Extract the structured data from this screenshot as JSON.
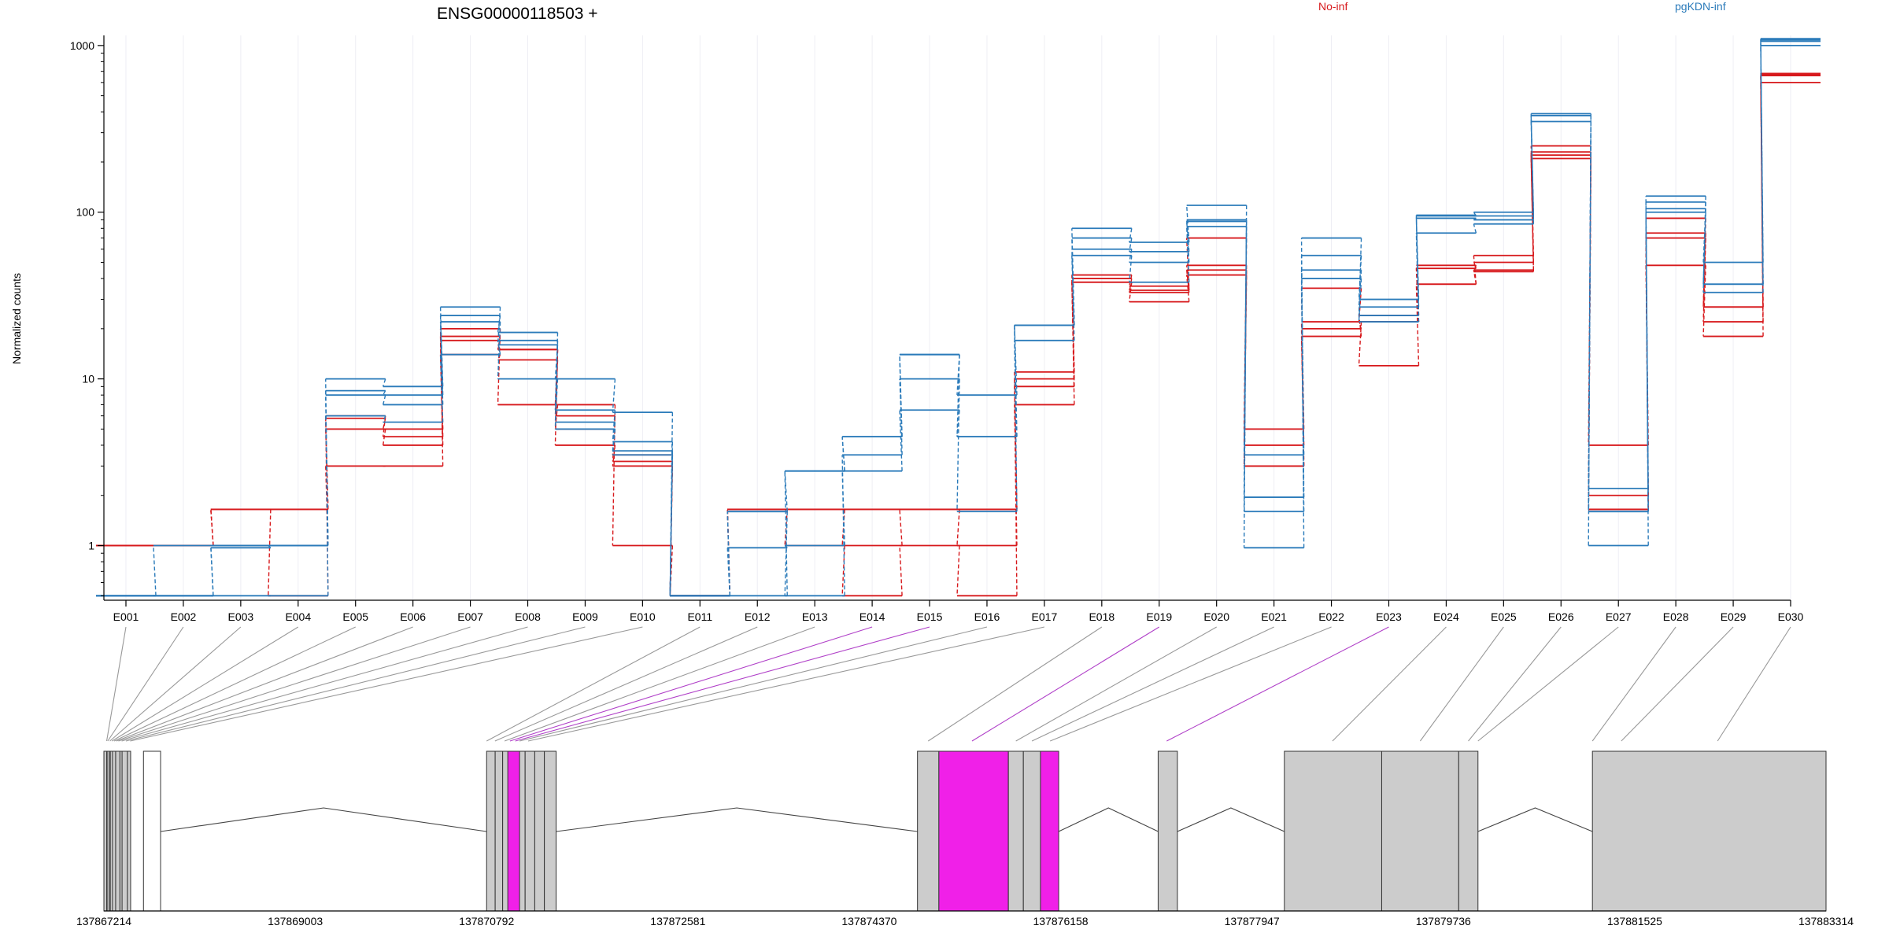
{
  "chart_data": {
    "type": "line",
    "title": "ENSG00000118503 +",
    "ylabel": "Normalized counts",
    "yscale": "log",
    "ylim": [
      0.47,
      1150
    ],
    "yticks": [
      1,
      10,
      100,
      1000
    ],
    "grid": false,
    "legend_placement": "top",
    "categories": [
      "E001",
      "E002",
      "E003",
      "E004",
      "E005",
      "E006",
      "E007",
      "E008",
      "E009",
      "E010",
      "E011",
      "E012",
      "E013",
      "E014",
      "E015",
      "E016",
      "E017",
      "E018",
      "E019",
      "E020",
      "E021",
      "E022",
      "E023",
      "E024",
      "E025",
      "E026",
      "E027",
      "E028",
      "E029",
      "E030"
    ],
    "groups": [
      {
        "name": "No-inf",
        "color": "#d7191c"
      },
      {
        "name": "pgKDN-inf",
        "color": "#2b7bba"
      }
    ],
    "series": [
      {
        "group": "No-inf",
        "values": [
          1,
          1,
          1.65,
          1.65,
          5,
          4,
          14,
          13,
          6,
          3.5,
          0.5,
          1.65,
          1,
          0.5,
          1,
          0.5,
          11,
          40,
          33,
          45,
          3,
          22,
          12,
          37,
          45,
          230,
          2,
          92,
          27,
          660
        ]
      },
      {
        "group": "No-inf",
        "values": [
          1,
          1,
          1.65,
          1.65,
          5.8,
          5,
          17,
          15,
          4,
          3,
          0.5,
          1.65,
          1.65,
          1.65,
          1.65,
          1.65,
          10,
          42,
          36,
          48,
          3,
          20,
          22,
          46,
          50,
          210,
          1.65,
          70,
          22,
          600
        ]
      },
      {
        "group": "No-inf",
        "values": [
          1,
          1,
          1.65,
          0.5,
          6,
          4.5,
          20,
          7,
          5,
          3.2,
          0.5,
          1.65,
          1.65,
          1,
          1.65,
          1,
          7,
          38,
          29,
          42,
          4,
          18,
          24,
          48,
          44,
          220,
          4,
          48,
          18,
          670
        ]
      },
      {
        "group": "No-inf",
        "values": [
          1,
          1,
          1,
          1,
          3,
          3,
          18,
          15,
          7,
          1,
          0.5,
          1.65,
          1.65,
          1.65,
          1.65,
          1.65,
          9,
          38,
          34,
          70,
          5,
          35,
          22,
          37,
          55,
          250,
          1.65,
          75,
          27,
          680
        ]
      },
      {
        "group": "pgKDN-inf",
        "values": [
          0.5,
          0.5,
          1,
          1,
          6,
          5.5,
          14,
          17,
          5,
          3.5,
          0.5,
          0.97,
          1,
          2.8,
          6.5,
          4.5,
          17,
          55,
          38,
          82,
          1.6,
          40,
          22,
          75,
          85,
          390,
          1,
          100,
          37,
          1060
        ]
      },
      {
        "group": "pgKDN-inf",
        "values": [
          0.5,
          0.5,
          0.97,
          1,
          8,
          7,
          22,
          10,
          5.5,
          3.7,
          0.5,
          0.5,
          2.8,
          4.5,
          10,
          1.6,
          21,
          60,
          50,
          90,
          1.95,
          70,
          24,
          95,
          100,
          380,
          1.6,
          125,
          33,
          1100
        ]
      },
      {
        "group": "pgKDN-inf",
        "values": [
          0.5,
          0.5,
          0.5,
          0.5,
          10,
          9,
          27,
          16,
          10,
          6.3,
          0.5,
          1.6,
          0.5,
          3.5,
          14,
          8,
          21,
          80,
          66,
          110,
          0.97,
          55,
          30,
          96,
          95,
          380,
          1.6,
          105,
          50,
          1080
        ]
      },
      {
        "group": "pgKDN-inf",
        "values": [
          0.5,
          1,
          1,
          1,
          8.5,
          8,
          24,
          19,
          6.5,
          4.2,
          0.5,
          1.6,
          2.8,
          4.5,
          14,
          4.5,
          21,
          70,
          58,
          88,
          3.5,
          45,
          27,
          92,
          90,
          350,
          2.2,
          115,
          37,
          1000
        ]
      }
    ]
  },
  "exon_axis_labels": [
    "E001",
    "E002",
    "E003",
    "E004",
    "E005",
    "E006",
    "E007",
    "E008",
    "E009",
    "E010",
    "E011",
    "E012",
    "E013",
    "E014",
    "E015",
    "E016",
    "E017",
    "E018",
    "E019",
    "E020",
    "E021",
    "E022",
    "E023",
    "E024",
    "E025",
    "E026",
    "E027",
    "E028",
    "E029",
    "E030"
  ],
  "gene_model": {
    "coordinate_labels": [
      "137867214",
      "137869003",
      "137870792",
      "137872581",
      "137874370",
      "137876158",
      "137877947",
      "137879736",
      "137881525",
      "137883314"
    ],
    "genomic_range": [
      137867214,
      137883314
    ],
    "exon_color": "#cccccc",
    "highlight_color": "#f020e8",
    "exons": [
      {
        "id": "E001",
        "start": 137867214,
        "end": 137867244,
        "highlight": false
      },
      {
        "id": "E002",
        "start": 137867244,
        "end": 137867264,
        "highlight": false
      },
      {
        "id": "E003",
        "start": 137867264,
        "end": 137867274,
        "highlight": false
      },
      {
        "id": "E004",
        "start": 137867274,
        "end": 137867294,
        "highlight": false
      },
      {
        "id": "E005",
        "start": 137867294,
        "end": 137867324,
        "highlight": false
      },
      {
        "id": "E006",
        "start": 137867324,
        "end": 137867364,
        "highlight": false
      },
      {
        "id": "E007",
        "start": 137867364,
        "end": 137867384,
        "highlight": false
      },
      {
        "id": "E008",
        "start": 137867384,
        "end": 137867434,
        "highlight": false
      },
      {
        "id": "E009",
        "start": 137867434,
        "end": 137867464,
        "highlight": false
      },
      {
        "id": "E010",
        "start": 137867584,
        "end": 137867744,
        "highlight": false
      },
      {
        "id": "E011",
        "start": 137870792,
        "end": 137870872,
        "highlight": false
      },
      {
        "id": "E012",
        "start": 137870872,
        "end": 137870942,
        "highlight": false
      },
      {
        "id": "E013",
        "start": 137870942,
        "end": 137871062,
        "highlight": false
      },
      {
        "id": "E014",
        "start": 137871062,
        "end": 137871152,
        "highlight": false
      },
      {
        "id": "E015",
        "start": 137871152,
        "end": 137871242,
        "highlight": false
      },
      {
        "id": "E016",
        "start": 137871242,
        "end": 137871332,
        "highlight": false
      },
      {
        "id": "E017",
        "start": 137871332,
        "end": 137871442,
        "highlight": false
      },
      {
        "id": "E018",
        "start": 137874820,
        "end": 137875020,
        "highlight": false
      },
      {
        "id": "E019",
        "start": 137875020,
        "end": 137875670,
        "highlight": true
      },
      {
        "id": "E020",
        "start": 137875670,
        "end": 137875810,
        "highlight": false
      },
      {
        "id": "E021",
        "start": 137875810,
        "end": 137875970,
        "highlight": false
      },
      {
        "id": "E022",
        "start": 137875970,
        "end": 137876140,
        "highlight": true
      },
      {
        "id": "E023",
        "start": 137877070,
        "end": 137877250,
        "highlight": false
      },
      {
        "id": "E024",
        "start": 137878250,
        "end": 137879160,
        "highlight": false
      },
      {
        "id": "E025",
        "start": 137879160,
        "end": 137879880,
        "highlight": false
      },
      {
        "id": "E026",
        "start": 137879880,
        "end": 137880060,
        "highlight": false
      },
      {
        "id": "E027",
        "start": 137881130,
        "end": 137883314,
        "highlight": false
      }
    ],
    "extra_exons": [
      {
        "start": 137867214,
        "end": 137867240,
        "highlight": false
      },
      {
        "start": 137870990,
        "end": 137871100,
        "highlight": true
      }
    ],
    "connector_targets": [
      137867240,
      137867250,
      137867270,
      137867290,
      137867310,
      137867330,
      137867350,
      137867380,
      137867420,
      137867460,
      137870792,
      137870870,
      137870960,
      137871010,
      137871060,
      137871100,
      137871180,
      137874920,
      137875330,
      137875740,
      137875890,
      137876060,
      137877150,
      137878700,
      137879520,
      137879970,
      137880060,
      137881130,
      137881400,
      137882300
    ],
    "highlight_connectors": [
      13,
      14,
      18,
      22
    ]
  }
}
